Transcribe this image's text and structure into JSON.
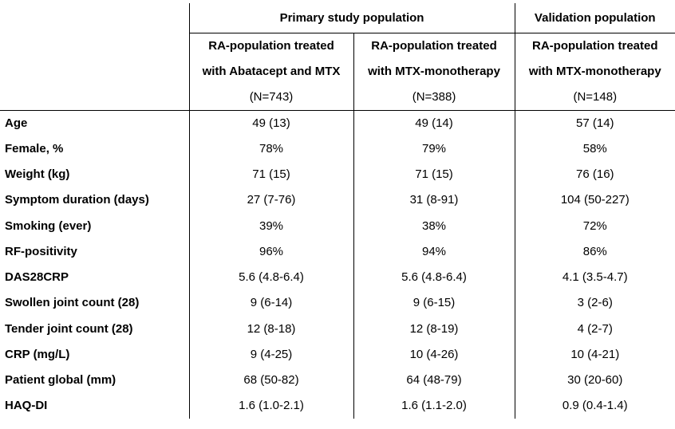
{
  "colors": {
    "background": "#ffffff",
    "text": "#000000",
    "border": "#000000"
  },
  "table": {
    "col_groups": [
      {
        "label": "Primary study population",
        "span": 2
      },
      {
        "label": "Validation population",
        "span": 1
      }
    ],
    "columns": [
      {
        "line1": "RA-population treated",
        "line2": "with Abatacept and MTX",
        "n": "(N=743)"
      },
      {
        "line1": "RA-population treated",
        "line2": "with MTX-monotherapy",
        "n": "(N=388)"
      },
      {
        "line1": "RA-population treated",
        "line2": "with MTX-monotherapy",
        "n": "(N=148)"
      }
    ],
    "rows": [
      {
        "label": "Age",
        "values": [
          "49 (13)",
          "49 (14)",
          "57 (14)"
        ]
      },
      {
        "label": "Female, %",
        "values": [
          "78%",
          "79%",
          "58%"
        ]
      },
      {
        "label": "Weight (kg)",
        "values": [
          "71 (15)",
          "71 (15)",
          "76 (16)"
        ]
      },
      {
        "label": "Symptom duration (days)",
        "values": [
          "27 (7-76)",
          "31 (8-91)",
          "104 (50-227)"
        ]
      },
      {
        "label": "Smoking (ever)",
        "values": [
          "39%",
          "38%",
          "72%"
        ]
      },
      {
        "label": "RF-positivity",
        "values": [
          "96%",
          "94%",
          "86%"
        ]
      },
      {
        "label": "DAS28CRP",
        "values": [
          "5.6 (4.8-6.4)",
          "5.6 (4.8-6.4)",
          "4.1 (3.5-4.7)"
        ]
      },
      {
        "label": "Swollen joint count (28)",
        "values": [
          "9 (6-14)",
          "9 (6-15)",
          "3 (2-6)"
        ]
      },
      {
        "label": "Tender joint count (28)",
        "values": [
          "12 (8-18)",
          "12 (8-19)",
          "4 (2-7)"
        ]
      },
      {
        "label": "CRP (mg/L)",
        "values": [
          "9 (4-25)",
          "10 (4-26)",
          "10 (4-21)"
        ]
      },
      {
        "label": "Patient global (mm)",
        "values": [
          "68 (50-82)",
          "64 (48-79)",
          "30 (20-60)"
        ]
      },
      {
        "label": "HAQ-DI",
        "values": [
          "1.6 (1.0-2.1)",
          "1.6 (1.1-2.0)",
          "0.9 (0.4-1.4)"
        ]
      }
    ]
  }
}
